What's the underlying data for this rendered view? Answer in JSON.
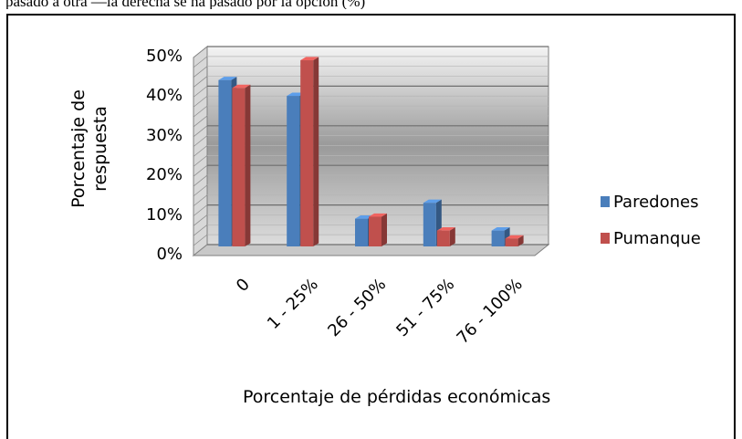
{
  "page": {
    "top_text": "pasado a otra —la derecha se ha pasado por la opción (%)"
  },
  "chart_data": {
    "type": "bar",
    "title": "",
    "xlabel": "Porcentaje de pérdidas económicas",
    "ylabel_lines": [
      "Porcentaje de",
      "respuesta"
    ],
    "categories": [
      "0",
      "1 - 25%",
      "26 - 50%",
      "51 - 75%",
      "76 - 100%"
    ],
    "y_ticks": [
      "0%",
      "10%",
      "20%",
      "30%",
      "40%",
      "50%"
    ],
    "ylim": [
      0,
      50
    ],
    "grid": true,
    "legend_position": "right",
    "series": [
      {
        "name": "Paredones",
        "color": "#4a7ebb",
        "values": [
          42,
          38,
          7,
          11,
          4
        ]
      },
      {
        "name": "Pumanque",
        "color": "#c0504d",
        "values": [
          40,
          47,
          7.5,
          4,
          2
        ]
      }
    ]
  }
}
